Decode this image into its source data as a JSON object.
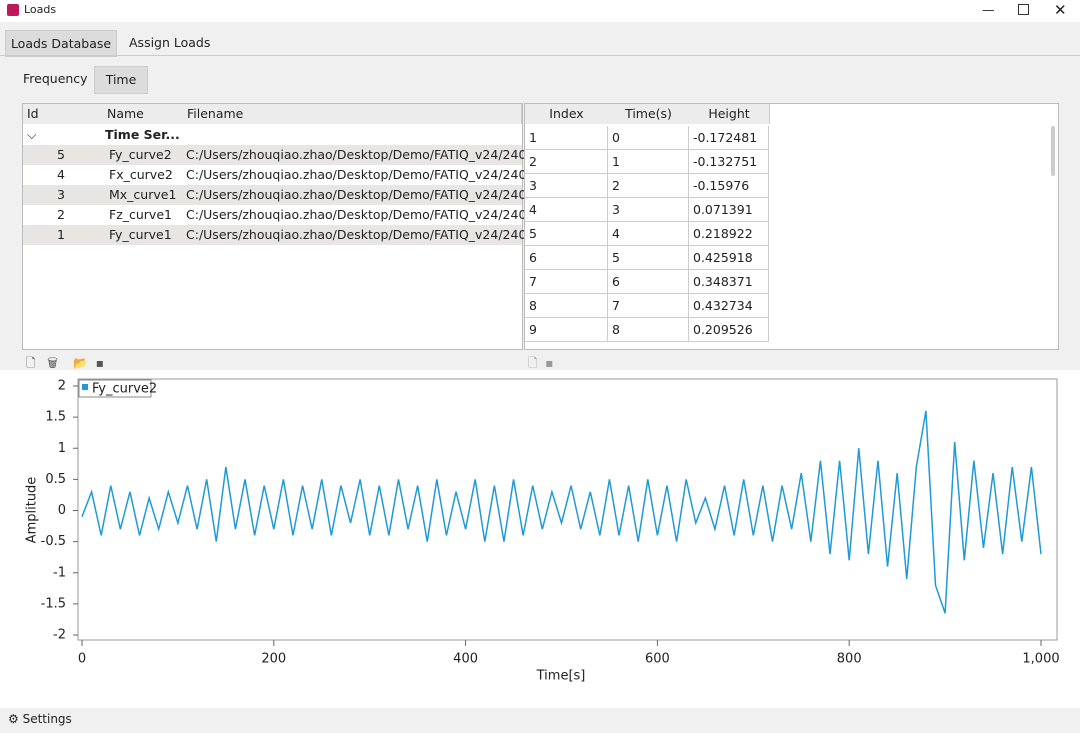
{
  "window": {
    "title": "Loads"
  },
  "tabs": [
    "Loads Database",
    "Assign Loads"
  ],
  "subtabs": [
    "Frequency",
    "Time"
  ],
  "loads_table": {
    "columns": [
      "Id",
      "Name",
      "Filename"
    ],
    "group": "Time Ser...",
    "rows": [
      [
        5,
        "Fy_curve2",
        "C:/Users/zhouqiao.zhao/Desktop/Demo/FATIQ_v24/240..."
      ],
      [
        4,
        "Fx_curve2",
        "C:/Users/zhouqiao.zhao/Desktop/Demo/FATIQ_v24/240..."
      ],
      [
        3,
        "Mx_curve1",
        "C:/Users/zhouqiao.zhao/Desktop/Demo/FATIQ_v24/240..."
      ],
      [
        2,
        "Fz_curve1",
        "C:/Users/zhouqiao.zhao/Desktop/Demo/FATIQ_v24/240..."
      ],
      [
        1,
        "Fy_curve1",
        "C:/Users/zhouqiao.zhao/Desktop/Demo/FATIQ_v24/240..."
      ]
    ]
  },
  "data_table": {
    "columns": [
      "Index",
      "Time(s)",
      "Height"
    ],
    "rows": [
      [
        1,
        0,
        -0.172481
      ],
      [
        2,
        1,
        -0.132751
      ],
      [
        3,
        2,
        -0.15976
      ],
      [
        4,
        3,
        0.071391
      ],
      [
        5,
        4,
        0.218922
      ],
      [
        6,
        5,
        0.425918
      ],
      [
        7,
        6,
        0.348371
      ],
      [
        8,
        7,
        0.432734
      ],
      [
        9,
        8,
        0.209526
      ]
    ]
  },
  "chart_data": {
    "type": "line",
    "x_label": "Time[s]",
    "y_label": "Amplitude",
    "x": [
      0,
      10,
      20,
      30,
      40,
      50,
      60,
      70,
      80,
      90,
      100,
      110,
      120,
      130,
      140,
      150,
      160,
      170,
      180,
      190,
      200,
      210,
      220,
      230,
      240,
      250,
      260,
      270,
      280,
      290,
      300,
      310,
      320,
      330,
      340,
      350,
      360,
      370,
      380,
      390,
      400,
      410,
      420,
      430,
      440,
      450,
      460,
      470,
      480,
      490,
      500,
      510,
      520,
      530,
      540,
      550,
      560,
      570,
      580,
      590,
      600,
      610,
      620,
      630,
      640,
      650,
      660,
      670,
      680,
      690,
      700,
      710,
      720,
      730,
      740,
      750,
      760,
      770,
      780,
      790,
      800,
      810,
      820,
      830,
      840,
      850,
      860,
      870,
      880,
      890,
      900,
      910,
      920,
      930,
      940,
      950,
      960,
      970,
      980,
      990,
      1000
    ],
    "series": [
      {
        "name": "Fy_curve2",
        "color": "#1f9ad6",
        "values": [
          -0.1,
          0.3,
          -0.4,
          0.4,
          -0.3,
          0.3,
          -0.4,
          0.2,
          -0.3,
          0.3,
          -0.2,
          0.4,
          -0.3,
          0.5,
          -0.5,
          0.7,
          -0.3,
          0.5,
          -0.4,
          0.4,
          -0.3,
          0.5,
          -0.4,
          0.4,
          -0.3,
          0.5,
          -0.4,
          0.4,
          -0.2,
          0.5,
          -0.4,
          0.4,
          -0.4,
          0.5,
          -0.3,
          0.4,
          -0.5,
          0.5,
          -0.4,
          0.3,
          -0.3,
          0.5,
          -0.5,
          0.4,
          -0.5,
          0.5,
          -0.4,
          0.4,
          -0.3,
          0.3,
          -0.2,
          0.4,
          -0.3,
          0.3,
          -0.4,
          0.5,
          -0.4,
          0.4,
          -0.5,
          0.5,
          -0.4,
          0.4,
          -0.5,
          0.5,
          -0.2,
          0.2,
          -0.3,
          0.4,
          -0.4,
          0.5,
          -0.4,
          0.4,
          -0.5,
          0.4,
          -0.3,
          0.6,
          -0.5,
          0.8,
          -0.7,
          0.8,
          -0.8,
          1.0,
          -0.7,
          0.8,
          -0.9,
          0.6,
          -1.1,
          0.7,
          1.6,
          -1.2,
          -1.65,
          1.1,
          -0.8,
          0.8,
          -0.6,
          0.6,
          -0.7,
          0.7,
          -0.5,
          0.7,
          -0.7
        ]
      }
    ],
    "xlim": [
      0,
      1000
    ],
    "ylim": [
      -2,
      2
    ],
    "xticks": [
      0,
      200,
      400,
      600,
      800,
      {
        "value": 1000,
        "label": "1,000"
      }
    ],
    "yticks": [
      2,
      1.5,
      1,
      0.5,
      0,
      -0.5,
      -1,
      -1.5,
      -2
    ]
  },
  "footer": {
    "settings": "Settings"
  }
}
